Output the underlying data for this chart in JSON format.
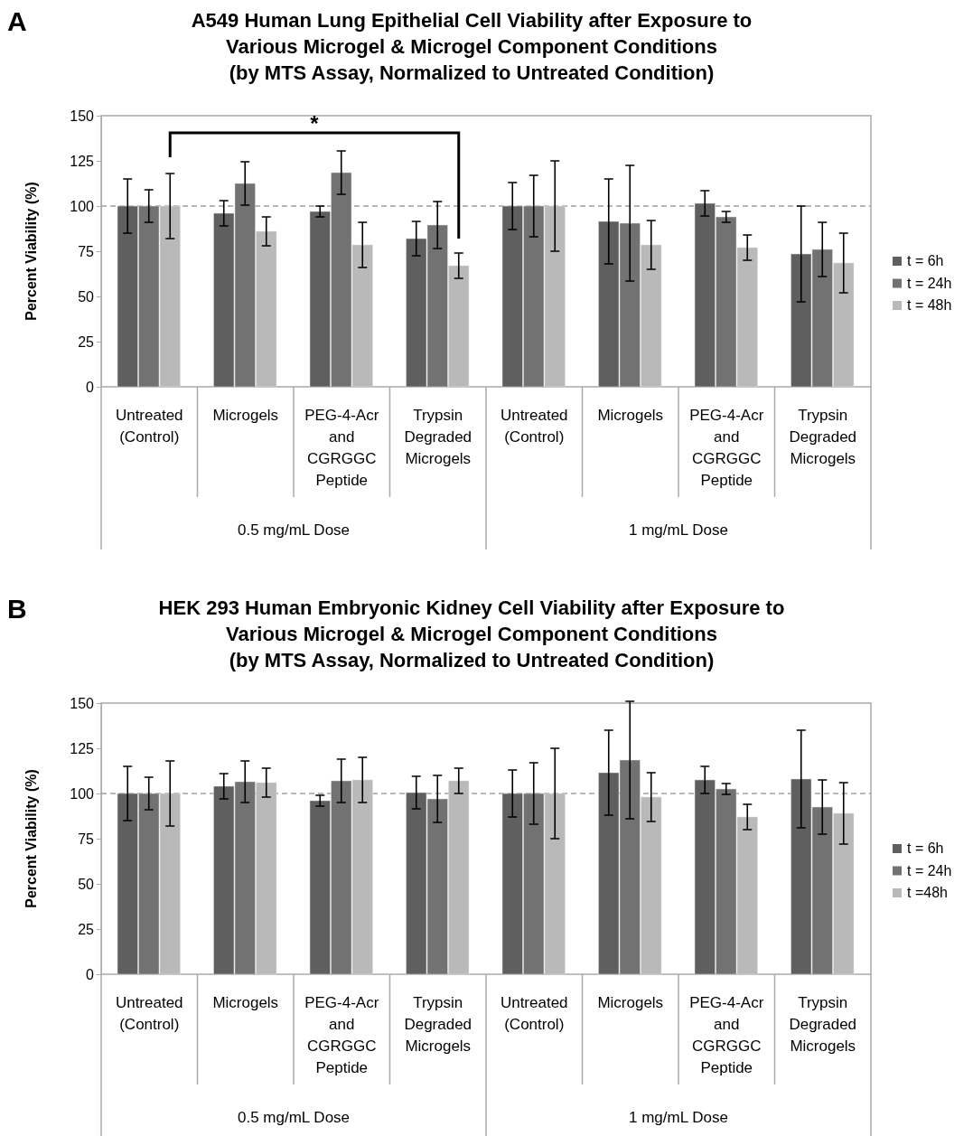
{
  "chart_data": [
    {
      "type": "bar",
      "title": "A549 Human Lung Epithelial Cell Viability after Exposure to\nVarious Microgel & Microgel Component Conditions\n(by MTS Assay, Normalized to Untreated Condition)",
      "ylabel": "Percent Viability (%)",
      "categories": [
        "Untreated\n(Control)",
        "Microgels",
        "PEG-4-Acr\nand\nCGRGGC\nPeptide",
        "Trypsin\nDegraded\nMicrogels",
        "Untreated\n(Control)",
        "Microgels",
        "PEG-4-Acr\nand\nCGRGGC\nPeptide",
        "Trypsin\nDegraded\nMicrogels"
      ],
      "series": [
        {
          "name": "t = 6h",
          "color": "#5f5f5f",
          "values": [
            100,
            96,
            97,
            82,
            100,
            91.5,
            101.5,
            73.5
          ],
          "errors": [
            15,
            7,
            3,
            9.5,
            13,
            23.5,
            7,
            26.5
          ]
        },
        {
          "name": "t = 24h",
          "color": "#727272",
          "values": [
            100,
            112.5,
            118.5,
            89.5,
            100,
            90.5,
            94,
            76
          ],
          "errors": [
            9,
            12,
            12,
            13,
            17,
            32,
            3,
            15
          ]
        },
        {
          "name": "t = 48h",
          "color": "#b9b9b9",
          "values": [
            100,
            86,
            78.5,
            67,
            100,
            78.5,
            77,
            68.5
          ],
          "errors": [
            18,
            8,
            12.5,
            7,
            25,
            13.5,
            7,
            16.5
          ]
        }
      ],
      "ylim": [
        0,
        150
      ],
      "yticks": [
        0,
        25,
        50,
        75,
        100,
        125,
        150
      ],
      "grid": false,
      "legend": "right",
      "ref_lines": [
        {
          "axis": "y",
          "value": 100,
          "label": null,
          "color": "#a0a0a0",
          "line_style": "dashed"
        }
      ],
      "annotations": [
        "A",
        "*",
        "0.5 mg/mL Dose",
        "1 mg/mL Dose"
      ]
    },
    {
      "type": "bar",
      "title": "HEK 293 Human Embryonic Kidney Cell Viability after Exposure to\nVarious Microgel & Microgel Component Conditions\n(by MTS Assay, Normalized to Untreated Condition)",
      "ylabel": "Percent Viability (%)",
      "categories": [
        "Untreated\n(Control)",
        "Microgels",
        "PEG-4-Acr\nand\nCGRGGC\nPeptide",
        "Trypsin\nDegraded\nMicrogels",
        "Untreated\n(Control)",
        "Microgels",
        "PEG-4-Acr\nand\nCGRGGC\nPeptide",
        "Trypsin\nDegraded\nMicrogels"
      ],
      "series": [
        {
          "name": "t = 6h",
          "color": "#5f5f5f",
          "values": [
            100,
            104,
            96,
            100.5,
            100,
            111.5,
            107.5,
            108
          ],
          "errors": [
            15,
            7,
            3,
            9,
            13,
            23.5,
            7.5,
            27
          ]
        },
        {
          "name": "t = 24h",
          "color": "#727272",
          "values": [
            100,
            106.5,
            107,
            97,
            100,
            118.5,
            102.5,
            92.5
          ],
          "errors": [
            9,
            11.5,
            12,
            13,
            17,
            32.5,
            3,
            15
          ]
        },
        {
          "name": "t =48h",
          "color": "#b9b9b9",
          "values": [
            100,
            106,
            107.5,
            107,
            100,
            98,
            87,
            89
          ],
          "errors": [
            18,
            8,
            12.5,
            7,
            25,
            13.5,
            7,
            17
          ]
        }
      ],
      "ylim": [
        0,
        150
      ],
      "yticks": [
        0,
        25,
        50,
        75,
        100,
        125,
        150
      ],
      "grid": false,
      "legend": "right",
      "ref_lines": [
        {
          "axis": "y",
          "value": 100,
          "label": null,
          "color": "#a0a0a0",
          "line_style": "dashed"
        }
      ],
      "annotations": [
        "B",
        "0.5 mg/mL Dose",
        "1 mg/mL Dose"
      ]
    }
  ]
}
